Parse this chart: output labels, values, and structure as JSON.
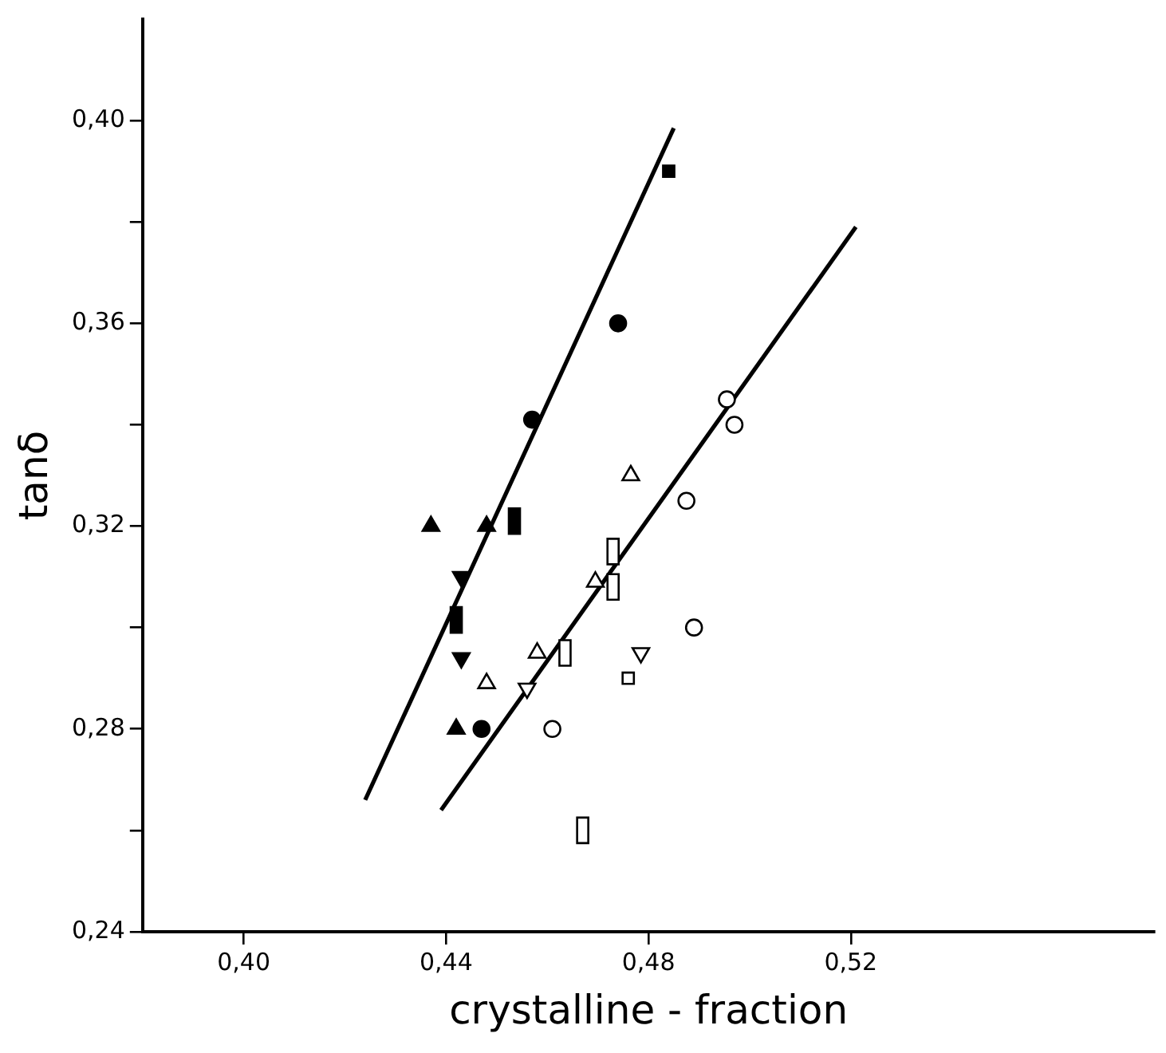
{
  "chart_data": {
    "type": "scatter",
    "xlabel": "crystalline - fraction",
    "ylabel": "tanδ",
    "xlim": [
      0.38,
      0.58
    ],
    "ylim": [
      0.24,
      0.42
    ],
    "xticks": [
      {
        "value": 0.4,
        "label": "0,40"
      },
      {
        "value": 0.44,
        "label": "0,44"
      },
      {
        "value": 0.48,
        "label": "0,48"
      },
      {
        "value": 0.52,
        "label": "0,52"
      }
    ],
    "yticks": [
      {
        "value": 0.24,
        "label": "0,24"
      },
      {
        "value": 0.26,
        "label": null
      },
      {
        "value": 0.28,
        "label": "0,28"
      },
      {
        "value": 0.3,
        "label": null
      },
      {
        "value": 0.32,
        "label": "0,32"
      },
      {
        "value": 0.34,
        "label": null
      },
      {
        "value": 0.36,
        "label": "0,36"
      },
      {
        "value": 0.38,
        "label": null
      },
      {
        "value": 0.4,
        "label": "0,40"
      }
    ],
    "grid": false,
    "legend": false,
    "series": [
      {
        "marker": "square",
        "color": "#000000",
        "x": [
          0.484
        ],
        "values": [
          0.39
        ]
      },
      {
        "marker": "circle",
        "color": "#000000",
        "x": [
          0.474,
          0.457,
          0.447
        ],
        "values": [
          0.36,
          0.341,
          0.28
        ]
      },
      {
        "marker": "triangle",
        "color": "#000000",
        "x": [
          0.437,
          0.448,
          0.442
        ],
        "values": [
          0.32,
          0.32,
          0.28
        ]
      },
      {
        "marker": "triangle-down",
        "color": "#000000",
        "x": [
          0.443,
          0.443
        ],
        "values": [
          0.31,
          0.294
        ]
      },
      {
        "marker": "rectangle",
        "color": "#000000",
        "x": [
          0.4535,
          0.442
        ],
        "values": [
          0.321,
          0.3015
        ]
      },
      {
        "marker": "circle",
        "color": "#ffffff",
        "x": [
          0.4955,
          0.497,
          0.4875,
          0.489,
          0.461
        ],
        "values": [
          0.345,
          0.34,
          0.325,
          0.3,
          0.28
        ]
      },
      {
        "marker": "triangle",
        "color": "#ffffff",
        "x": [
          0.4765,
          0.4695,
          0.458,
          0.448
        ],
        "values": [
          0.33,
          0.309,
          0.295,
          0.289
        ]
      },
      {
        "marker": "triangle-down",
        "color": "#ffffff",
        "x": [
          0.4785,
          0.456
        ],
        "values": [
          0.295,
          0.288
        ]
      },
      {
        "marker": "square",
        "color": "#ffffff",
        "x": [
          0.476
        ],
        "values": [
          0.29
        ]
      },
      {
        "marker": "rectangle",
        "color": "#ffffff",
        "x": [
          0.473,
          0.473,
          0.4635,
          0.467
        ],
        "values": [
          0.315,
          0.308,
          0.295,
          0.26
        ]
      },
      {
        "type": "line",
        "marker": "none",
        "color": "#000000",
        "x": [
          0.424,
          0.485
        ],
        "values": [
          0.266,
          0.3985
        ]
      },
      {
        "type": "line",
        "marker": "none",
        "color": "#000000",
        "x": [
          0.439,
          0.521
        ],
        "values": [
          0.264,
          0.379
        ]
      }
    ]
  }
}
